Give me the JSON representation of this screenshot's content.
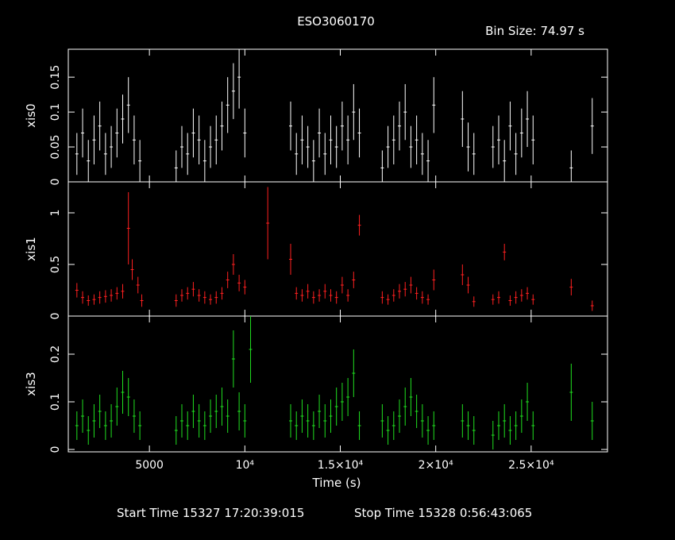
{
  "header": {
    "title": "ESO3060170",
    "bin_size": "Bin Size: 74.97 s"
  },
  "footer": {
    "start_time": "Start Time 15327 17:20:39:015",
    "stop_time": "Stop Time 15328  0:56:43:065"
  },
  "chart_data": [
    {
      "type": "scatter",
      "ylabel": "xis0",
      "ylim": [
        0,
        0.19
      ],
      "yticks": [
        0,
        0.05,
        0.1,
        0.15
      ],
      "ytick_labels": [
        "0",
        "0.05",
        "0.1",
        "0.15"
      ],
      "color": "#ffffff",
      "series": [
        {
          "x": [
            1200,
            1500,
            1800,
            2100,
            2400,
            2700,
            3000,
            3300,
            3600,
            3900,
            4200,
            4500,
            6400,
            6700,
            7000,
            7300,
            7600,
            7900,
            8200,
            8500,
            8800,
            9100,
            9400,
            9700,
            10000,
            12400,
            12700,
            13000,
            13300,
            13600,
            13900,
            14200,
            14500,
            14800,
            15100,
            15400,
            15700,
            16000,
            17200,
            17500,
            17800,
            18100,
            18400,
            18700,
            19000,
            19300,
            19600,
            19900,
            21400,
            21700,
            22000,
            23000,
            23300,
            23600,
            23900,
            24200,
            24500,
            24800,
            25100,
            27100,
            28200
          ],
          "y": [
            0.04,
            0.07,
            0.03,
            0.06,
            0.08,
            0.04,
            0.05,
            0.07,
            0.09,
            0.11,
            0.06,
            0.03,
            0.02,
            0.05,
            0.04,
            0.07,
            0.06,
            0.03,
            0.05,
            0.06,
            0.08,
            0.11,
            0.13,
            0.15,
            0.07,
            0.08,
            0.04,
            0.06,
            0.05,
            0.03,
            0.07,
            0.04,
            0.06,
            0.05,
            0.08,
            0.06,
            0.1,
            0.07,
            0.02,
            0.05,
            0.06,
            0.08,
            0.1,
            0.05,
            0.06,
            0.04,
            0.03,
            0.11,
            0.09,
            0.05,
            0.04,
            0.05,
            0.06,
            0.03,
            0.08,
            0.04,
            0.07,
            0.09,
            0.06,
            0.02,
            0.08
          ],
          "err": [
            0.03,
            0.035,
            0.03,
            0.035,
            0.035,
            0.03,
            0.03,
            0.035,
            0.035,
            0.04,
            0.035,
            0.03,
            0.025,
            0.03,
            0.03,
            0.035,
            0.035,
            0.03,
            0.03,
            0.035,
            0.035,
            0.04,
            0.04,
            0.045,
            0.035,
            0.035,
            0.03,
            0.035,
            0.03,
            0.03,
            0.035,
            0.03,
            0.035,
            0.03,
            0.035,
            0.035,
            0.04,
            0.035,
            0.025,
            0.03,
            0.035,
            0.035,
            0.04,
            0.03,
            0.035,
            0.03,
            0.03,
            0.04,
            0.04,
            0.035,
            0.03,
            0.03,
            0.035,
            0.03,
            0.035,
            0.03,
            0.035,
            0.04,
            0.035,
            0.025,
            0.04
          ]
        }
      ]
    },
    {
      "type": "scatter",
      "ylabel": "xis1",
      "ylim": [
        0,
        1.3
      ],
      "yticks": [
        0,
        0.5,
        1
      ],
      "ytick_labels": [
        "0",
        "0.5",
        "1"
      ],
      "color": "#ff2020",
      "series": [
        {
          "x": [
            1200,
            1500,
            1800,
            2100,
            2400,
            2700,
            3000,
            3300,
            3600,
            3900,
            4100,
            4400,
            4600,
            6400,
            6700,
            7000,
            7300,
            7600,
            7900,
            8200,
            8500,
            8800,
            9100,
            9400,
            9700,
            10000,
            11200,
            12400,
            12700,
            13000,
            13300,
            13600,
            13900,
            14200,
            14500,
            14800,
            15100,
            15400,
            15700,
            16000,
            17200,
            17500,
            17800,
            18100,
            18400,
            18700,
            19000,
            19300,
            19600,
            19900,
            21400,
            21700,
            22000,
            23000,
            23300,
            23600,
            23900,
            24200,
            24500,
            24800,
            25100,
            27100,
            28200
          ],
          "y": [
            0.25,
            0.18,
            0.15,
            0.16,
            0.18,
            0.19,
            0.2,
            0.22,
            0.24,
            0.85,
            0.45,
            0.3,
            0.15,
            0.15,
            0.2,
            0.22,
            0.26,
            0.2,
            0.18,
            0.16,
            0.18,
            0.22,
            0.35,
            0.5,
            0.32,
            0.28,
            0.9,
            0.55,
            0.22,
            0.2,
            0.24,
            0.18,
            0.2,
            0.24,
            0.2,
            0.18,
            0.3,
            0.2,
            0.35,
            0.88,
            0.18,
            0.16,
            0.2,
            0.24,
            0.26,
            0.3,
            0.22,
            0.18,
            0.16,
            0.35,
            0.4,
            0.3,
            0.14,
            0.16,
            0.18,
            0.62,
            0.15,
            0.18,
            0.2,
            0.22,
            0.16,
            0.28,
            0.1
          ],
          "err": [
            0.07,
            0.06,
            0.05,
            0.05,
            0.06,
            0.06,
            0.06,
            0.06,
            0.07,
            0.35,
            0.1,
            0.08,
            0.06,
            0.06,
            0.06,
            0.06,
            0.07,
            0.06,
            0.06,
            0.05,
            0.06,
            0.06,
            0.08,
            0.1,
            0.08,
            0.07,
            0.35,
            0.15,
            0.06,
            0.06,
            0.07,
            0.06,
            0.06,
            0.07,
            0.06,
            0.06,
            0.08,
            0.06,
            0.08,
            0.1,
            0.06,
            0.05,
            0.06,
            0.07,
            0.07,
            0.08,
            0.06,
            0.06,
            0.05,
            0.1,
            0.1,
            0.08,
            0.05,
            0.05,
            0.06,
            0.08,
            0.05,
            0.06,
            0.06,
            0.06,
            0.05,
            0.08,
            0.05
          ]
        }
      ]
    },
    {
      "type": "scatter",
      "ylabel": "xis3",
      "xlabel": "Time (s)",
      "ylim": [
        -0.005,
        0.28
      ],
      "yticks": [
        0,
        0.1,
        0.2
      ],
      "ytick_labels": [
        "0",
        "0.1",
        "0.2"
      ],
      "xlim": [
        750,
        29000
      ],
      "xticks": [
        5000,
        10000,
        15000,
        20000,
        25000
      ],
      "xtick_labels": [
        "5000",
        "10⁴",
        "1.5×10⁴",
        "2×10⁴",
        "2.5×10⁴"
      ],
      "color": "#20e020",
      "series": [
        {
          "x": [
            1200,
            1500,
            1800,
            2100,
            2400,
            2700,
            3000,
            3300,
            3600,
            3900,
            4200,
            4500,
            6400,
            6700,
            7000,
            7300,
            7600,
            7900,
            8200,
            8500,
            8800,
            9100,
            9400,
            9700,
            10000,
            10300,
            12400,
            12700,
            13000,
            13300,
            13600,
            13900,
            14200,
            14500,
            14800,
            15100,
            15400,
            15700,
            16000,
            17200,
            17500,
            17800,
            18100,
            18400,
            18700,
            19000,
            19300,
            19600,
            19900,
            21400,
            21700,
            22000,
            23000,
            23300,
            23600,
            23900,
            24200,
            24500,
            24800,
            25100,
            27100,
            28200
          ],
          "y": [
            0.05,
            0.07,
            0.04,
            0.06,
            0.08,
            0.05,
            0.06,
            0.09,
            0.12,
            0.11,
            0.07,
            0.05,
            0.04,
            0.06,
            0.05,
            0.08,
            0.06,
            0.05,
            0.07,
            0.08,
            0.09,
            0.07,
            0.19,
            0.08,
            0.06,
            0.21,
            0.06,
            0.05,
            0.07,
            0.06,
            0.05,
            0.08,
            0.06,
            0.07,
            0.09,
            0.1,
            0.11,
            0.16,
            0.05,
            0.06,
            0.04,
            0.05,
            0.07,
            0.09,
            0.11,
            0.08,
            0.06,
            0.04,
            0.05,
            0.06,
            0.05,
            0.04,
            0.03,
            0.05,
            0.06,
            0.04,
            0.05,
            0.07,
            0.1,
            0.05,
            0.12,
            0.06
          ],
          "err": [
            0.03,
            0.035,
            0.03,
            0.035,
            0.035,
            0.03,
            0.035,
            0.04,
            0.045,
            0.04,
            0.035,
            0.03,
            0.03,
            0.035,
            0.03,
            0.035,
            0.035,
            0.03,
            0.035,
            0.035,
            0.04,
            0.035,
            0.06,
            0.04,
            0.035,
            0.07,
            0.035,
            0.03,
            0.035,
            0.035,
            0.03,
            0.035,
            0.035,
            0.035,
            0.04,
            0.04,
            0.04,
            0.05,
            0.03,
            0.035,
            0.03,
            0.03,
            0.035,
            0.04,
            0.04,
            0.035,
            0.035,
            0.03,
            0.03,
            0.035,
            0.03,
            0.03,
            0.03,
            0.03,
            0.035,
            0.03,
            0.03,
            0.035,
            0.04,
            0.03,
            0.06,
            0.04
          ]
        }
      ]
    }
  ]
}
